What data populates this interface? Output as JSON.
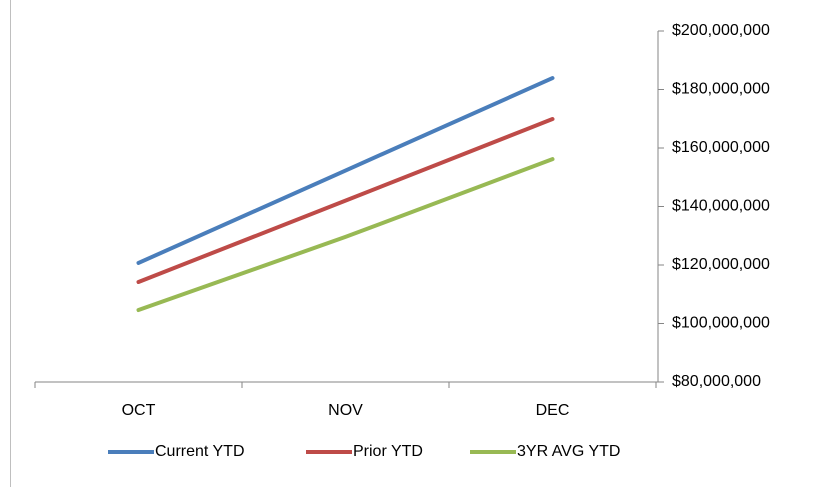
{
  "chart_data": {
    "type": "line",
    "categories": [
      "OCT",
      "NOV",
      "DEC"
    ],
    "series": [
      {
        "name": "Current YTD",
        "color": "#4a7ebb",
        "values": [
          120700000,
          152300000,
          183900000
        ]
      },
      {
        "name": "Prior YTD",
        "color": "#be4b48",
        "values": [
          114200000,
          142000000,
          169900000
        ]
      },
      {
        "name": "3YR AVG YTD",
        "color": "#98b954",
        "values": [
          104600000,
          129600000,
          156200000
        ]
      }
    ],
    "ylim": [
      80000000,
      200000000
    ],
    "yticks": [
      {
        "value": 80000000,
        "label": "$80,000,000"
      },
      {
        "value": 100000000,
        "label": "$100,000,000"
      },
      {
        "value": 120000000,
        "label": "$120,000,000"
      },
      {
        "value": 140000000,
        "label": "$140,000,000"
      },
      {
        "value": 160000000,
        "label": "$160,000,000"
      },
      {
        "value": 180000000,
        "label": "$180,000,000"
      },
      {
        "value": 200000000,
        "label": "$200,000,000"
      }
    ],
    "y_axis_side": "right",
    "legend": "bottom"
  }
}
